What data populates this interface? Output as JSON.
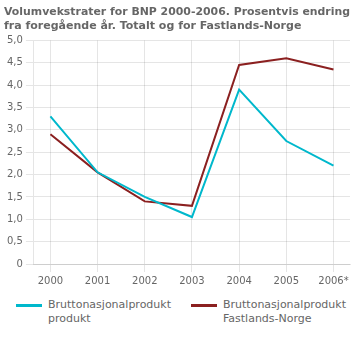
{
  "chart_data": {
    "type": "line",
    "title": "Volumvekstrater for BNP 2000-2006. Prosentvis endring\nfra foregående år. Totalt og for Fastlands-Norge",
    "x": [
      2000,
      2001,
      2002,
      2003,
      2004,
      2005,
      2006
    ],
    "series": [
      {
        "name": "Bruttonasjonalprodukt\nprodukt",
        "color": "#00b8cc",
        "values": [
          3.3,
          2.05,
          1.5,
          1.05,
          3.9,
          2.75,
          2.2
        ]
      },
      {
        "name": "Bruttonasjonalprodukt\nFastlands-Norge",
        "color": "#8b2020",
        "values": [
          2.9,
          2.05,
          1.4,
          1.3,
          4.45,
          4.6,
          4.35
        ]
      }
    ],
    "xlim": [
      1999.65,
      2006.35
    ],
    "xticks": [
      2000,
      2001,
      2002,
      2003,
      2004,
      2005,
      {
        "value": 2006,
        "label": "2006*"
      }
    ],
    "ylim": [
      0,
      5.0
    ],
    "yticks": [
      0,
      {
        "value": 0.5,
        "label": "0,5"
      },
      {
        "value": 1.0,
        "label": "1,0"
      },
      {
        "value": 1.5,
        "label": "1,5"
      },
      {
        "value": 2.0,
        "label": "2,0"
      },
      {
        "value": 2.5,
        "label": "2,5"
      },
      {
        "value": 3.0,
        "label": "3,0"
      },
      {
        "value": 3.5,
        "label": "3,5"
      },
      {
        "value": 4.0,
        "label": "4,0"
      },
      {
        "value": 4.5,
        "label": "4,5"
      },
      {
        "value": 5.0,
        "label": "5,0"
      }
    ],
    "grid": true,
    "legend": "bottom"
  }
}
